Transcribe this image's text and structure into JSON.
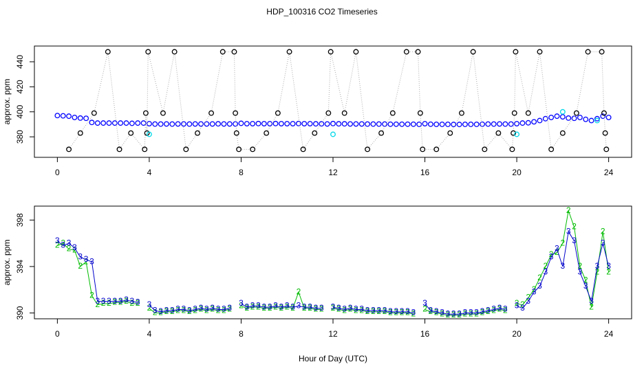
{
  "chart_data": [
    {
      "type": "scatter",
      "title": "HDP_100316  CO2 Timeseries",
      "y_label": "approx. ppm",
      "xlim": [
        -1,
        25
      ],
      "xticks": [
        0,
        4,
        8,
        12,
        16,
        20,
        24
      ],
      "ylim": [
        363.6,
        452.6
      ],
      "yticks": [
        380,
        400,
        420,
        440
      ],
      "x": [
        0,
        0.25,
        0.5,
        0.75,
        1,
        1.25,
        1.5,
        1.75,
        2,
        2.25,
        2.5,
        2.75,
        3,
        3.25,
        3.5,
        3.75,
        4,
        4.25,
        4.5,
        4.75,
        5,
        5.25,
        5.5,
        5.75,
        6,
        6.25,
        6.5,
        6.75,
        7,
        7.25,
        7.5,
        7.75,
        8,
        8.25,
        8.5,
        8.75,
        9,
        9.25,
        9.5,
        9.75,
        10,
        10.25,
        10.5,
        10.75,
        11,
        11.25,
        11.5,
        11.75,
        12,
        12.25,
        12.5,
        12.75,
        13,
        13.25,
        13.5,
        13.75,
        14,
        14.25,
        14.5,
        14.75,
        15,
        15.25,
        15.5,
        15.75,
        16,
        16.25,
        16.5,
        16.75,
        17,
        17.25,
        17.5,
        17.75,
        18,
        18.25,
        18.5,
        18.75,
        19,
        19.25,
        19.5,
        19.75,
        20,
        20.25,
        20.5,
        20.75,
        21,
        21.25,
        21.5,
        21.75,
        22,
        22.25,
        22.5,
        22.75,
        23,
        23.25,
        23.5,
        23.75,
        24
      ],
      "series": [
        {
          "color": "#0000ff",
          "marker": "circle",
          "values": [
            397,
            396.8,
            396.5,
            395.5,
            395,
            394.8,
            391.5,
            391,
            391,
            391,
            391,
            391,
            391,
            390.8,
            391,
            391,
            390.5,
            390.2,
            390.2,
            390.3,
            390.2,
            390.3,
            390.3,
            390.2,
            390.3,
            390.3,
            390.3,
            390.3,
            390.4,
            390.3,
            390.3,
            390.3,
            390.8,
            390.5,
            390.5,
            390.6,
            390.5,
            390.5,
            390.6,
            390.5,
            390.5,
            390.5,
            390.6,
            390.5,
            390.5,
            390.4,
            390.4,
            390.3,
            390.6,
            390.4,
            390.4,
            390.3,
            390.3,
            390.3,
            390.2,
            390.2,
            390.2,
            390.2,
            390.1,
            390.1,
            390.1,
            390.1,
            390.1,
            390,
            390.5,
            390.1,
            390,
            390,
            390,
            389.9,
            389.9,
            390,
            390,
            390,
            390.1,
            390.2,
            390.2,
            390.3,
            390.2,
            390.2,
            390.5,
            391,
            391.2,
            392,
            393,
            394.5,
            395.5,
            396.5,
            396,
            395,
            394.8,
            395.5,
            394,
            393,
            394.5,
            396.5,
            395.5
          ]
        },
        {
          "color": "#000000",
          "marker": "circle",
          "line_color": "#aaaaaa",
          "x": [
            0.5,
            1,
            1.6,
            2.2,
            2.7,
            3.2,
            3.8,
            3.85,
            3.9,
            3.95,
            4.6,
            5.1,
            5.6,
            6.1,
            6.7,
            7.2,
            7.7,
            7.75,
            7.8,
            7.9,
            8.5,
            9.1,
            9.6,
            10.1,
            10.7,
            11.2,
            11.8,
            11.9,
            12.5,
            13,
            13.5,
            14.1,
            14.6,
            15.2,
            15.7,
            15.8,
            15.9,
            16.5,
            17.1,
            17.6,
            18.1,
            18.6,
            19.2,
            19.8,
            19.85,
            19.9,
            19.95,
            20.5,
            21,
            21.5,
            22,
            22.6,
            23.1,
            23.7,
            23.8,
            23.85,
            23.9
          ],
          "values": [
            370,
            383,
            399,
            448,
            370,
            383,
            370,
            399,
            383,
            448,
            399,
            448,
            370,
            383,
            399,
            448,
            448,
            399,
            383,
            370,
            370,
            383,
            399,
            448,
            370,
            383,
            399,
            448,
            399,
            448,
            370,
            383,
            399,
            448,
            448,
            399,
            370,
            370,
            383,
            399,
            448,
            370,
            383,
            370,
            383,
            399,
            448,
            399,
            448,
            370,
            383,
            399,
            448,
            448,
            399,
            383,
            370
          ]
        },
        {
          "color": "#00d8e8",
          "marker": "circle",
          "x": [
            4,
            12,
            20,
            22,
            23.5
          ],
          "values": [
            382,
            382,
            382,
            400,
            393
          ]
        }
      ]
    },
    {
      "type": "line",
      "y_label": "approx. ppm",
      "x_label": "Hour of Day (UTC)",
      "xlim": [
        -1,
        25
      ],
      "xticks": [
        0,
        4,
        8,
        12,
        16,
        20,
        24
      ],
      "ylim": [
        389.5,
        399.2
      ],
      "yticks": [
        390,
        394,
        398
      ],
      "x": [
        0,
        0.25,
        0.5,
        0.75,
        1,
        1.25,
        1.5,
        1.75,
        2,
        2.25,
        2.5,
        2.75,
        3,
        3.25,
        3.5,
        3.75,
        4,
        4.25,
        4.5,
        4.75,
        5,
        5.25,
        5.5,
        5.75,
        6,
        6.25,
        6.5,
        6.75,
        7,
        7.25,
        7.5,
        7.75,
        8,
        8.25,
        8.5,
        8.75,
        9,
        9.25,
        9.5,
        9.75,
        10,
        10.25,
        10.5,
        10.75,
        11,
        11.25,
        11.5,
        11.75,
        12,
        12.25,
        12.5,
        12.75,
        13,
        13.25,
        13.5,
        13.75,
        14,
        14.25,
        14.5,
        14.75,
        15,
        15.25,
        15.5,
        15.75,
        16,
        16.25,
        16.5,
        16.75,
        17,
        17.25,
        17.5,
        17.75,
        18,
        18.25,
        18.5,
        18.75,
        19,
        19.25,
        19.5,
        19.75,
        20,
        20.25,
        20.5,
        20.75,
        21,
        21.25,
        21.5,
        21.75,
        22,
        22.25,
        22.5,
        22.75,
        23,
        23.25,
        23.5,
        23.75,
        24
      ],
      "series": [
        {
          "name": "2",
          "color": "#00bb00",
          "marker": "name",
          "values": [
            395.8,
            396,
            395.5,
            395.4,
            394,
            394.4,
            391.5,
            390.7,
            390.8,
            390.8,
            390.9,
            390.9,
            391,
            390.8,
            390.8,
            null,
            390.4,
            390,
            390,
            390.1,
            390.1,
            390.2,
            390.2,
            390.1,
            390.2,
            390.3,
            390.2,
            390.3,
            390.2,
            390.2,
            390.3,
            null,
            390.6,
            390.4,
            390.5,
            390.5,
            390.4,
            390.4,
            390.5,
            390.4,
            390.5,
            390.4,
            391.8,
            390.4,
            390.4,
            390.3,
            390.3,
            null,
            390.4,
            390.3,
            390.2,
            390.3,
            390.2,
            390.2,
            390.1,
            390.1,
            390.1,
            390.1,
            390,
            390,
            390,
            390,
            389.9,
            null,
            390.3,
            390.1,
            390,
            389.9,
            389.8,
            389.8,
            389.8,
            389.9,
            389.9,
            389.9,
            390,
            390.1,
            390.2,
            390.3,
            390.2,
            null,
            390.8,
            390.7,
            391.3,
            392,
            393,
            394,
            395,
            395.2,
            396,
            398.8,
            397.4,
            394,
            392.8,
            390.5,
            393.5,
            397,
            393.5
          ]
        },
        {
          "name": "3",
          "color": "#0000cc",
          "marker": "name",
          "values": [
            396.2,
            395.8,
            396,
            395.6,
            394.8,
            394.6,
            394.4,
            391,
            391,
            391,
            391,
            391,
            391.1,
            391,
            390.9,
            null,
            390.7,
            390.2,
            390.1,
            390.2,
            390.2,
            390.3,
            390.3,
            390.2,
            390.3,
            390.4,
            390.3,
            390.4,
            390.3,
            390.3,
            390.4,
            null,
            390.8,
            390.5,
            390.6,
            390.6,
            390.5,
            390.5,
            390.6,
            390.5,
            390.6,
            390.5,
            390.6,
            390.5,
            390.5,
            390.4,
            390.4,
            null,
            390.5,
            390.4,
            390.3,
            390.4,
            390.3,
            390.3,
            390.2,
            390.2,
            390.2,
            390.2,
            390.1,
            390.1,
            390.1,
            390.1,
            390,
            null,
            390.8,
            390.2,
            390.1,
            390,
            389.9,
            389.9,
            389.9,
            390,
            390,
            390,
            390.1,
            390.2,
            390.3,
            390.4,
            390.3,
            null,
            390.6,
            390.4,
            391,
            391.8,
            392.3,
            393.5,
            394.8,
            395.5,
            394,
            397,
            396.2,
            393.5,
            392.3,
            391,
            394,
            396,
            394
          ]
        }
      ]
    }
  ]
}
